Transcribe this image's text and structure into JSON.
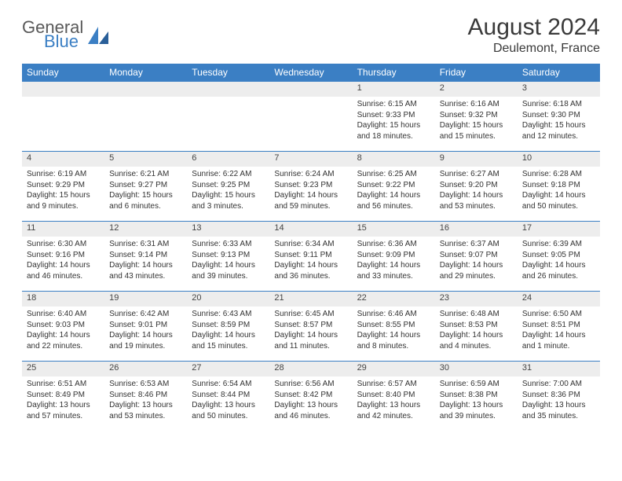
{
  "logo": {
    "text_gray": "General",
    "text_blue": "Blue"
  },
  "title": "August 2024",
  "subtitle": "Deulemont, France",
  "colors": {
    "header_bg": "#3b7fc4",
    "header_text": "#ffffff",
    "daynum_bg": "#ededed",
    "border": "#3b7fc4",
    "logo_gray": "#595959",
    "logo_blue": "#3b7fc4",
    "body_text": "#333333"
  },
  "weekdays": [
    "Sunday",
    "Monday",
    "Tuesday",
    "Wednesday",
    "Thursday",
    "Friday",
    "Saturday"
  ],
  "weeks": [
    [
      {
        "day": "",
        "lines": []
      },
      {
        "day": "",
        "lines": []
      },
      {
        "day": "",
        "lines": []
      },
      {
        "day": "",
        "lines": []
      },
      {
        "day": "1",
        "lines": [
          "Sunrise: 6:15 AM",
          "Sunset: 9:33 PM",
          "Daylight: 15 hours",
          "and 18 minutes."
        ]
      },
      {
        "day": "2",
        "lines": [
          "Sunrise: 6:16 AM",
          "Sunset: 9:32 PM",
          "Daylight: 15 hours",
          "and 15 minutes."
        ]
      },
      {
        "day": "3",
        "lines": [
          "Sunrise: 6:18 AM",
          "Sunset: 9:30 PM",
          "Daylight: 15 hours",
          "and 12 minutes."
        ]
      }
    ],
    [
      {
        "day": "4",
        "lines": [
          "Sunrise: 6:19 AM",
          "Sunset: 9:29 PM",
          "Daylight: 15 hours",
          "and 9 minutes."
        ]
      },
      {
        "day": "5",
        "lines": [
          "Sunrise: 6:21 AM",
          "Sunset: 9:27 PM",
          "Daylight: 15 hours",
          "and 6 minutes."
        ]
      },
      {
        "day": "6",
        "lines": [
          "Sunrise: 6:22 AM",
          "Sunset: 9:25 PM",
          "Daylight: 15 hours",
          "and 3 minutes."
        ]
      },
      {
        "day": "7",
        "lines": [
          "Sunrise: 6:24 AM",
          "Sunset: 9:23 PM",
          "Daylight: 14 hours",
          "and 59 minutes."
        ]
      },
      {
        "day": "8",
        "lines": [
          "Sunrise: 6:25 AM",
          "Sunset: 9:22 PM",
          "Daylight: 14 hours",
          "and 56 minutes."
        ]
      },
      {
        "day": "9",
        "lines": [
          "Sunrise: 6:27 AM",
          "Sunset: 9:20 PM",
          "Daylight: 14 hours",
          "and 53 minutes."
        ]
      },
      {
        "day": "10",
        "lines": [
          "Sunrise: 6:28 AM",
          "Sunset: 9:18 PM",
          "Daylight: 14 hours",
          "and 50 minutes."
        ]
      }
    ],
    [
      {
        "day": "11",
        "lines": [
          "Sunrise: 6:30 AM",
          "Sunset: 9:16 PM",
          "Daylight: 14 hours",
          "and 46 minutes."
        ]
      },
      {
        "day": "12",
        "lines": [
          "Sunrise: 6:31 AM",
          "Sunset: 9:14 PM",
          "Daylight: 14 hours",
          "and 43 minutes."
        ]
      },
      {
        "day": "13",
        "lines": [
          "Sunrise: 6:33 AM",
          "Sunset: 9:13 PM",
          "Daylight: 14 hours",
          "and 39 minutes."
        ]
      },
      {
        "day": "14",
        "lines": [
          "Sunrise: 6:34 AM",
          "Sunset: 9:11 PM",
          "Daylight: 14 hours",
          "and 36 minutes."
        ]
      },
      {
        "day": "15",
        "lines": [
          "Sunrise: 6:36 AM",
          "Sunset: 9:09 PM",
          "Daylight: 14 hours",
          "and 33 minutes."
        ]
      },
      {
        "day": "16",
        "lines": [
          "Sunrise: 6:37 AM",
          "Sunset: 9:07 PM",
          "Daylight: 14 hours",
          "and 29 minutes."
        ]
      },
      {
        "day": "17",
        "lines": [
          "Sunrise: 6:39 AM",
          "Sunset: 9:05 PM",
          "Daylight: 14 hours",
          "and 26 minutes."
        ]
      }
    ],
    [
      {
        "day": "18",
        "lines": [
          "Sunrise: 6:40 AM",
          "Sunset: 9:03 PM",
          "Daylight: 14 hours",
          "and 22 minutes."
        ]
      },
      {
        "day": "19",
        "lines": [
          "Sunrise: 6:42 AM",
          "Sunset: 9:01 PM",
          "Daylight: 14 hours",
          "and 19 minutes."
        ]
      },
      {
        "day": "20",
        "lines": [
          "Sunrise: 6:43 AM",
          "Sunset: 8:59 PM",
          "Daylight: 14 hours",
          "and 15 minutes."
        ]
      },
      {
        "day": "21",
        "lines": [
          "Sunrise: 6:45 AM",
          "Sunset: 8:57 PM",
          "Daylight: 14 hours",
          "and 11 minutes."
        ]
      },
      {
        "day": "22",
        "lines": [
          "Sunrise: 6:46 AM",
          "Sunset: 8:55 PM",
          "Daylight: 14 hours",
          "and 8 minutes."
        ]
      },
      {
        "day": "23",
        "lines": [
          "Sunrise: 6:48 AM",
          "Sunset: 8:53 PM",
          "Daylight: 14 hours",
          "and 4 minutes."
        ]
      },
      {
        "day": "24",
        "lines": [
          "Sunrise: 6:50 AM",
          "Sunset: 8:51 PM",
          "Daylight: 14 hours",
          "and 1 minute."
        ]
      }
    ],
    [
      {
        "day": "25",
        "lines": [
          "Sunrise: 6:51 AM",
          "Sunset: 8:49 PM",
          "Daylight: 13 hours",
          "and 57 minutes."
        ]
      },
      {
        "day": "26",
        "lines": [
          "Sunrise: 6:53 AM",
          "Sunset: 8:46 PM",
          "Daylight: 13 hours",
          "and 53 minutes."
        ]
      },
      {
        "day": "27",
        "lines": [
          "Sunrise: 6:54 AM",
          "Sunset: 8:44 PM",
          "Daylight: 13 hours",
          "and 50 minutes."
        ]
      },
      {
        "day": "28",
        "lines": [
          "Sunrise: 6:56 AM",
          "Sunset: 8:42 PM",
          "Daylight: 13 hours",
          "and 46 minutes."
        ]
      },
      {
        "day": "29",
        "lines": [
          "Sunrise: 6:57 AM",
          "Sunset: 8:40 PM",
          "Daylight: 13 hours",
          "and 42 minutes."
        ]
      },
      {
        "day": "30",
        "lines": [
          "Sunrise: 6:59 AM",
          "Sunset: 8:38 PM",
          "Daylight: 13 hours",
          "and 39 minutes."
        ]
      },
      {
        "day": "31",
        "lines": [
          "Sunrise: 7:00 AM",
          "Sunset: 8:36 PM",
          "Daylight: 13 hours",
          "and 35 minutes."
        ]
      }
    ]
  ]
}
